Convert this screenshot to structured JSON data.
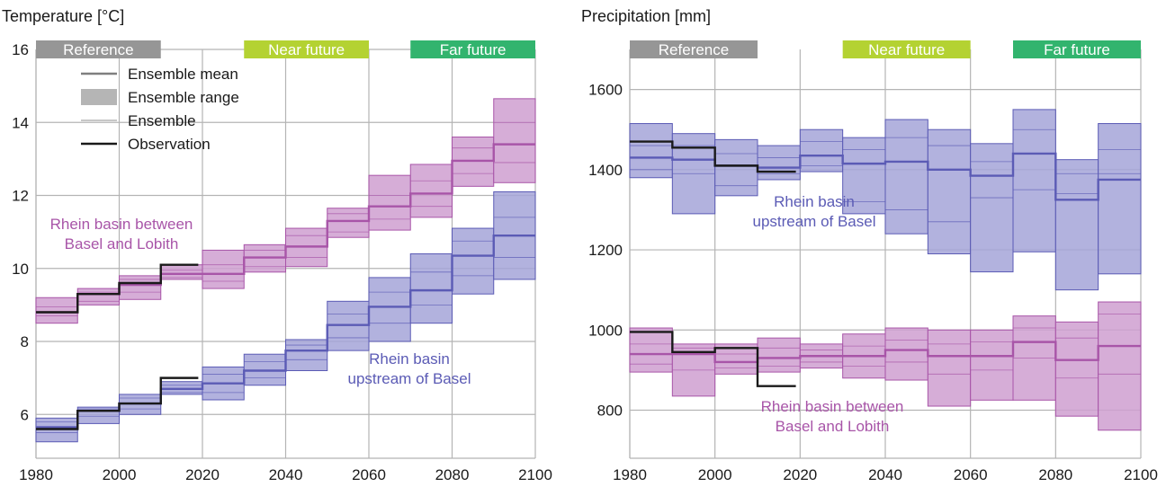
{
  "colors": {
    "upstream": "#5b5bb5",
    "upstream_fill": "#a5a5d8",
    "between": "#a855a8",
    "between_fill": "#cf9fd0",
    "observation": "#1a1a1a",
    "grid": "#b4b4b4",
    "reference": "#969696",
    "near_future": "#b4d232",
    "far_future": "#32b46e"
  },
  "legend": [
    {
      "label": "Ensemble mean",
      "kind": "mean"
    },
    {
      "label": "Ensemble range",
      "kind": "range"
    },
    {
      "label": "Ensemble",
      "kind": "member"
    },
    {
      "label": "Observation",
      "kind": "obs"
    }
  ],
  "chart_data": [
    {
      "type": "line",
      "title": "Temperature [°C]",
      "xlim": [
        1980,
        2100
      ],
      "ylim": [
        4.8,
        16
      ],
      "xticks": [
        1980,
        2000,
        2020,
        2040,
        2060,
        2080,
        2100
      ],
      "yticks": [
        6,
        8,
        10,
        12,
        14,
        16
      ],
      "periods": [
        {
          "label": "Reference",
          "start": 1980,
          "end": 2010,
          "color": "#969696"
        },
        {
          "label": "Near future",
          "start": 2030,
          "end": 2060,
          "color": "#b4d232"
        },
        {
          "label": "Far future",
          "start": 2070,
          "end": 2100,
          "color": "#32b46e"
        }
      ],
      "decades": [
        1980,
        1990,
        2000,
        2010,
        2020,
        2030,
        2040,
        2050,
        2060,
        2070,
        2080,
        2090,
        2100
      ],
      "series": [
        {
          "name": "Rhein basin between Basel and Lobith",
          "key": "between",
          "label_lines": [
            "Rhein basin between",
            "Basel and Lobith"
          ],
          "mean": [
            8.8,
            9.3,
            9.55,
            9.85,
            9.85,
            10.3,
            10.6,
            11.3,
            11.7,
            12.05,
            12.95,
            13.4
          ],
          "min": [
            8.5,
            9.0,
            9.15,
            9.7,
            9.45,
            9.9,
            10.05,
            10.85,
            11.05,
            11.4,
            12.25,
            12.35
          ],
          "max": [
            9.2,
            9.45,
            9.8,
            10.1,
            10.5,
            10.65,
            11.1,
            11.65,
            12.55,
            12.85,
            13.6,
            14.65
          ],
          "members": [
            [
              8.7,
              9.1,
              9.35,
              9.75,
              9.65,
              10.05,
              10.3,
              11.0,
              11.35,
              11.7,
              12.6,
              12.9
            ],
            [
              8.95,
              9.35,
              9.7,
              9.95,
              10.1,
              10.5,
              10.9,
              11.5,
              12.0,
              12.4,
              13.3,
              14.0
            ]
          ]
        },
        {
          "name": "Rhein basin upstream of Basel",
          "key": "upstream",
          "label_lines": [
            "Rhein basin",
            "upstream of Basel"
          ],
          "mean": [
            5.65,
            6.1,
            6.3,
            6.7,
            6.85,
            7.2,
            7.75,
            8.45,
            8.95,
            9.4,
            10.35,
            10.9
          ],
          "min": [
            5.25,
            5.75,
            6.0,
            6.55,
            6.4,
            6.8,
            7.2,
            7.75,
            8.0,
            8.5,
            9.3,
            9.7
          ],
          "max": [
            5.9,
            6.2,
            6.55,
            6.9,
            7.3,
            7.65,
            8.05,
            9.1,
            9.75,
            10.4,
            11.1,
            12.1
          ],
          "members": [
            [
              5.5,
              5.95,
              6.15,
              6.6,
              6.6,
              7.0,
              7.5,
              8.1,
              8.5,
              9.0,
              9.8,
              10.3
            ],
            [
              5.8,
              6.15,
              6.45,
              6.8,
              7.1,
              7.45,
              7.9,
              8.75,
              9.35,
              9.9,
              10.75,
              11.4
            ]
          ]
        }
      ],
      "observations": [
        {
          "key": "between",
          "x": [
            1980,
            1990,
            2000,
            2010,
            2019
          ],
          "y": [
            8.8,
            9.3,
            9.6,
            10.1,
            10.1
          ]
        },
        {
          "key": "upstream",
          "x": [
            1980,
            1990,
            2000,
            2010,
            2019
          ],
          "y": [
            5.6,
            6.1,
            6.3,
            7.0,
            7.0
          ]
        }
      ]
    },
    {
      "type": "line",
      "title": "Precipitation [mm]",
      "xlim": [
        1980,
        2100
      ],
      "ylim": [
        680,
        1700
      ],
      "xticks": [
        1980,
        2000,
        2020,
        2040,
        2060,
        2080,
        2100
      ],
      "yticks": [
        800,
        1000,
        1200,
        1400,
        1600
      ],
      "periods": [
        {
          "label": "Reference",
          "start": 1980,
          "end": 2010,
          "color": "#969696"
        },
        {
          "label": "Near future",
          "start": 2030,
          "end": 2060,
          "color": "#b4d232"
        },
        {
          "label": "Far future",
          "start": 2070,
          "end": 2100,
          "color": "#32b46e"
        }
      ],
      "decades": [
        1980,
        1990,
        2000,
        2010,
        2020,
        2030,
        2040,
        2050,
        2060,
        2070,
        2080,
        2090,
        2100
      ],
      "series": [
        {
          "name": "Rhein basin upstream of Basel",
          "key": "upstream",
          "label_lines": [
            "Rhein basin",
            "upstream of Basel"
          ],
          "mean": [
            1430,
            1425,
            1410,
            1405,
            1435,
            1415,
            1420,
            1400,
            1385,
            1440,
            1325,
            1375
          ],
          "min": [
            1380,
            1290,
            1335,
            1375,
            1395,
            1290,
            1240,
            1190,
            1145,
            1195,
            1100,
            1140
          ],
          "max": [
            1515,
            1490,
            1475,
            1460,
            1500,
            1480,
            1525,
            1500,
            1465,
            1550,
            1425,
            1515
          ],
          "members": [
            [
              1400,
              1390,
              1360,
              1390,
              1410,
              1320,
              1300,
              1270,
              1330,
              1350,
              1340,
              1390
            ],
            [
              1460,
              1460,
              1440,
              1430,
              1470,
              1450,
              1480,
              1460,
              1420,
              1500,
              1390,
              1450
            ]
          ]
        },
        {
          "name": "Rhein basin between Basel and Lobith",
          "key": "between",
          "label_lines": [
            "Rhein basin between",
            "Basel and Lobith"
          ],
          "mean": [
            940,
            940,
            920,
            930,
            935,
            935,
            950,
            935,
            935,
            970,
            925,
            960
          ],
          "min": [
            895,
            835,
            890,
            895,
            905,
            880,
            875,
            810,
            825,
            825,
            785,
            750
          ],
          "max": [
            1005,
            965,
            965,
            980,
            965,
            990,
            1005,
            1000,
            1000,
            1035,
            1020,
            1070
          ],
          "members": [
            [
              915,
              900,
              905,
              910,
              920,
              910,
              920,
              890,
              900,
              930,
              880,
              890
            ],
            [
              965,
              955,
              940,
              955,
              950,
              960,
              975,
              965,
              970,
              1005,
              980,
              1040
            ]
          ]
        }
      ],
      "observations": [
        {
          "key": "upstream",
          "x": [
            1980,
            1990,
            2000,
            2010,
            2019
          ],
          "y": [
            1470,
            1455,
            1410,
            1395,
            1395
          ]
        },
        {
          "key": "between",
          "x": [
            1980,
            1990,
            2000,
            2010,
            2019
          ],
          "y": [
            995,
            945,
            955,
            860,
            860
          ]
        }
      ]
    }
  ]
}
